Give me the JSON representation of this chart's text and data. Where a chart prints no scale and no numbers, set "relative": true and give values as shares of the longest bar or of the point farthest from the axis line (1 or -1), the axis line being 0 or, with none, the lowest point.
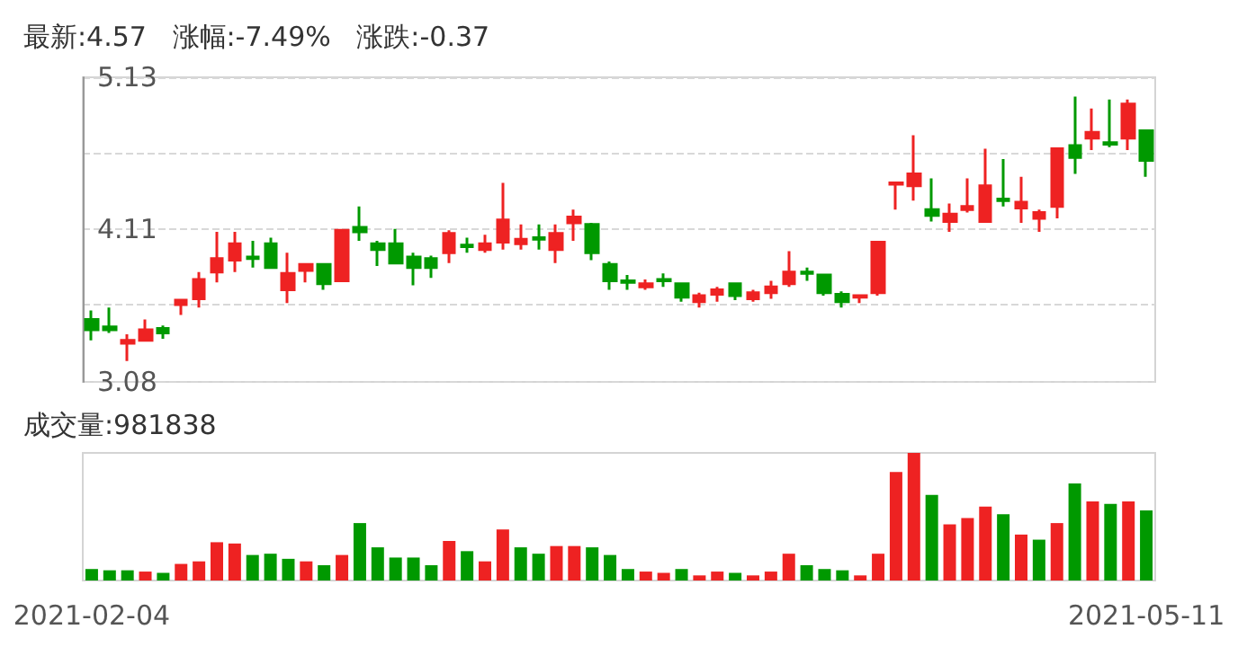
{
  "chart_data": [
    {
      "type": "candlestick",
      "title": "最新:4.57   涨幅:-7.49%   涨跌:-0.37",
      "categories": [
        "2021-02-04",
        null,
        null,
        null,
        null,
        null,
        null,
        null,
        null,
        null,
        null,
        null,
        null,
        null,
        null,
        null,
        null,
        null,
        null,
        null,
        null,
        null,
        null,
        null,
        null,
        null,
        null,
        null,
        null,
        null,
        null,
        null,
        null,
        null,
        null,
        null,
        null,
        null,
        null,
        null,
        null,
        null,
        null,
        null,
        null,
        null,
        null,
        null,
        null,
        null,
        null,
        null,
        null,
        null,
        null,
        null,
        null,
        null,
        null,
        "2021-05-11"
      ],
      "ohlc": [
        [
          3.5,
          3.56,
          3.36,
          3.43
        ],
        [
          3.45,
          3.58,
          3.41,
          3.43
        ],
        [
          3.34,
          3.4,
          3.22,
          3.36
        ],
        [
          3.36,
          3.5,
          3.36,
          3.43
        ],
        [
          3.44,
          3.46,
          3.37,
          3.41
        ],
        [
          3.6,
          3.64,
          3.53,
          3.63
        ],
        [
          3.64,
          3.82,
          3.58,
          3.77
        ],
        [
          3.82,
          4.09,
          3.75,
          3.91
        ],
        [
          3.9,
          4.09,
          3.82,
          4.01
        ],
        [
          3.92,
          4.03,
          3.85,
          3.91
        ],
        [
          4.01,
          4.05,
          3.84,
          3.85
        ],
        [
          3.7,
          3.95,
          3.61,
          3.81
        ],
        [
          3.83,
          3.87,
          3.75,
          3.87
        ],
        [
          3.87,
          3.87,
          3.7,
          3.74
        ],
        [
          3.76,
          4.1,
          3.76,
          4.1
        ],
        [
          4.12,
          4.26,
          4.03,
          4.09
        ],
        [
          4.01,
          4.03,
          3.86,
          3.97
        ],
        [
          4.01,
          4.11,
          3.88,
          3.88
        ],
        [
          3.92,
          3.95,
          3.73,
          3.85
        ],
        [
          3.91,
          3.93,
          3.78,
          3.85
        ],
        [
          3.95,
          4.1,
          3.88,
          4.08
        ],
        [
          4.0,
          4.05,
          3.95,
          3.99
        ],
        [
          3.97,
          4.07,
          3.95,
          4.01
        ],
        [
          4.02,
          4.42,
          3.97,
          4.17
        ],
        [
          4.01,
          4.14,
          3.97,
          4.04
        ],
        [
          4.05,
          4.14,
          3.97,
          4.04
        ],
        [
          3.97,
          4.14,
          3.88,
          4.08
        ],
        [
          4.15,
          4.24,
          4.03,
          4.19
        ],
        [
          4.14,
          4.15,
          3.9,
          3.95
        ],
        [
          3.87,
          3.89,
          3.7,
          3.76
        ],
        [
          3.76,
          3.8,
          3.7,
          3.75
        ],
        [
          3.72,
          3.77,
          3.7,
          3.74
        ],
        [
          3.77,
          3.81,
          3.72,
          3.76
        ],
        [
          3.74,
          3.74,
          3.62,
          3.65
        ],
        [
          3.62,
          3.68,
          3.58,
          3.66
        ],
        [
          3.67,
          3.72,
          3.62,
          3.7
        ],
        [
          3.74,
          3.74,
          3.63,
          3.66
        ],
        [
          3.64,
          3.7,
          3.62,
          3.68
        ],
        [
          3.68,
          3.76,
          3.64,
          3.72
        ],
        [
          3.74,
          3.96,
          3.72,
          3.82
        ],
        [
          3.82,
          3.85,
          3.76,
          3.81
        ],
        [
          3.8,
          3.8,
          3.66,
          3.68
        ],
        [
          3.67,
          3.69,
          3.58,
          3.62
        ],
        [
          3.65,
          3.66,
          3.61,
          3.66
        ],
        [
          3.68,
          4.02,
          3.66,
          4.02
        ],
        [
          4.41,
          4.42,
          4.24,
          4.42
        ],
        [
          4.4,
          4.74,
          4.3,
          4.48
        ],
        [
          4.24,
          4.45,
          4.16,
          4.2
        ],
        [
          4.16,
          4.28,
          4.09,
          4.21
        ],
        [
          4.24,
          4.45,
          4.22,
          4.26
        ],
        [
          4.16,
          4.65,
          4.15,
          4.4
        ],
        [
          4.31,
          4.58,
          4.26,
          4.3
        ],
        [
          4.25,
          4.46,
          4.15,
          4.29
        ],
        [
          4.18,
          4.24,
          4.09,
          4.22
        ],
        [
          4.26,
          4.65,
          4.18,
          4.65
        ],
        [
          4.67,
          5.0,
          4.48,
          4.59
        ],
        [
          4.72,
          4.92,
          4.64,
          4.76
        ],
        [
          4.69,
          4.98,
          4.66,
          4.68
        ],
        [
          4.72,
          4.98,
          4.64,
          4.95
        ],
        [
          4.77,
          4.77,
          4.46,
          4.57
        ]
      ],
      "colors": [
        "#009900",
        "#009900",
        "#ee2222",
        "#ee2222",
        "#009900",
        "#ee2222",
        "#ee2222",
        "#ee2222",
        "#ee2222",
        "#009900",
        "#009900",
        "#ee2222",
        "#ee2222",
        "#009900",
        "#ee2222",
        "#009900",
        "#009900",
        "#009900",
        "#009900",
        "#009900",
        "#ee2222",
        "#009900",
        "#ee2222",
        "#ee2222",
        "#ee2222",
        "#009900",
        "#ee2222",
        "#ee2222",
        "#009900",
        "#009900",
        "#009900",
        "#ee2222",
        "#009900",
        "#009900",
        "#ee2222",
        "#ee2222",
        "#009900",
        "#ee2222",
        "#ee2222",
        "#ee2222",
        "#009900",
        "#009900",
        "#009900",
        "#ee2222",
        "#ee2222",
        "#ee2222",
        "#ee2222",
        "#009900",
        "#ee2222",
        "#ee2222",
        "#ee2222",
        "#009900",
        "#ee2222",
        "#ee2222",
        "#ee2222",
        "#009900",
        "#ee2222",
        "#009900",
        "#ee2222",
        "#009900"
      ],
      "ylim": [
        3.08,
        5.13
      ],
      "yticks": [
        3.08,
        {
          "value": 3.6,
          "label": null
        },
        4.11,
        {
          "value": 4.62,
          "label": null
        },
        5.13
      ],
      "grid": "y",
      "tick_labels": "y"
    },
    {
      "type": "bar",
      "title": "成交量:981838",
      "relative": true,
      "tick_labels": "x",
      "categories": [
        "2021-02-04",
        null,
        null,
        null,
        null,
        null,
        null,
        null,
        null,
        null,
        null,
        null,
        null,
        null,
        null,
        null,
        null,
        null,
        null,
        null,
        null,
        null,
        null,
        null,
        null,
        null,
        null,
        null,
        null,
        null,
        null,
        null,
        null,
        null,
        null,
        null,
        null,
        null,
        null,
        null,
        null,
        null,
        null,
        null,
        null,
        null,
        null,
        null,
        null,
        null,
        null,
        null,
        null,
        null,
        null,
        null,
        null,
        null,
        null,
        "2021-05-11"
      ],
      "values": [
        0.09,
        0.08,
        0.08,
        0.07,
        0.06,
        0.13,
        0.15,
        0.3,
        0.29,
        0.2,
        0.21,
        0.17,
        0.15,
        0.12,
        0.2,
        0.45,
        0.26,
        0.18,
        0.18,
        0.12,
        0.31,
        0.23,
        0.15,
        0.4,
        0.26,
        0.21,
        0.27,
        0.27,
        0.26,
        0.2,
        0.09,
        0.07,
        0.06,
        0.09,
        0.04,
        0.07,
        0.06,
        0.04,
        0.07,
        0.21,
        0.12,
        0.09,
        0.08,
        0.04,
        0.21,
        0.85,
        1,
        0.67,
        0.44,
        0.49,
        0.58,
        0.52,
        0.36,
        0.32,
        0.45,
        0.76,
        0.62,
        0.6,
        0.62,
        0.55
      ],
      "colors": [
        "#009900",
        "#009900",
        "#009900",
        "#ee2222",
        "#009900",
        "#ee2222",
        "#ee2222",
        "#ee2222",
        "#ee2222",
        "#009900",
        "#009900",
        "#009900",
        "#ee2222",
        "#009900",
        "#ee2222",
        "#009900",
        "#009900",
        "#009900",
        "#009900",
        "#009900",
        "#ee2222",
        "#009900",
        "#ee2222",
        "#ee2222",
        "#009900",
        "#009900",
        "#ee2222",
        "#ee2222",
        "#009900",
        "#009900",
        "#009900",
        "#ee2222",
        "#ee2222",
        "#009900",
        "#ee2222",
        "#ee2222",
        "#009900",
        "#ee2222",
        "#ee2222",
        "#ee2222",
        "#009900",
        "#009900",
        "#009900",
        "#ee2222",
        "#ee2222",
        "#ee2222",
        "#ee2222",
        "#009900",
        "#ee2222",
        "#ee2222",
        "#ee2222",
        "#009900",
        "#ee2222",
        "#009900",
        "#ee2222",
        "#009900",
        "#ee2222",
        "#009900",
        "#ee2222",
        "#009900"
      ]
    }
  ]
}
